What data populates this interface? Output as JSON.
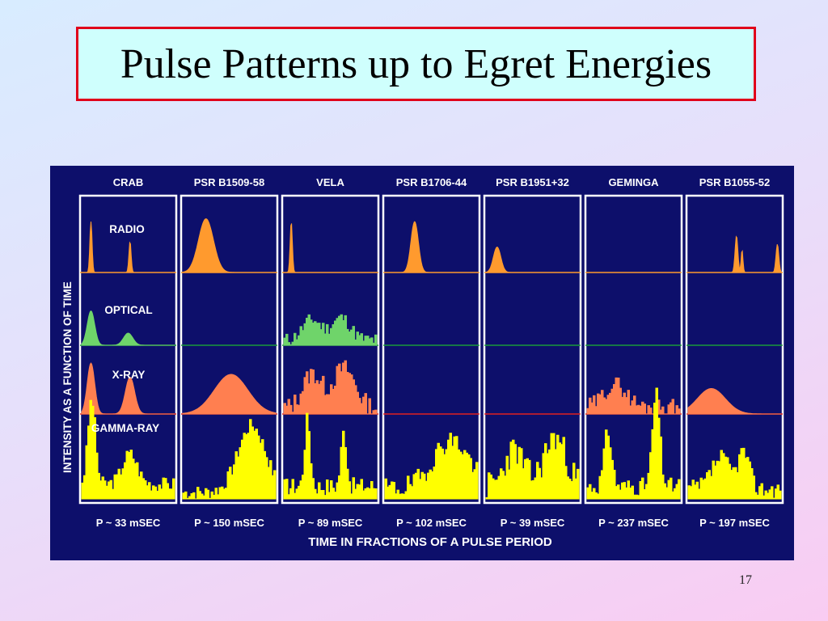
{
  "slide": {
    "title": "Pulse Patterns up to Egret Energies",
    "page_number": "17"
  },
  "figure": {
    "colors": {
      "background": "#0d0f6b",
      "panel_border": "#ffffff",
      "label_text": "#ffffff",
      "radio": "#ff9a2e",
      "optical": "#6fd46a",
      "optical_baseline": "#1a9a3a",
      "xray": "#ff7f50",
      "xray_outline": "#e02020",
      "gamma": "#ffff00"
    },
    "y_axis_label": "INTENSITY AS A FUNCTION OF TIME",
    "x_axis_label": "TIME IN FRACTIONS OF A PULSE PERIOD",
    "band_labels": {
      "radio": "RADIO",
      "optical": "OPTICAL",
      "xray": "X-RAY",
      "gamma": "GAMMA-RAY"
    },
    "pulsars": [
      {
        "name": "CRAB",
        "period": "P ~ 33 mSEC"
      },
      {
        "name": "PSR B1509-58",
        "period": "P ~ 150 mSEC"
      },
      {
        "name": "VELA",
        "period": "P ~ 89 mSEC"
      },
      {
        "name": "PSR B1706-44",
        "period": "P ~ 102 mSEC"
      },
      {
        "name": "PSR B1951+32",
        "period": "P ~ 39 mSEC"
      },
      {
        "name": "GEMINGA",
        "period": "P ~  237 mSEC"
      },
      {
        "name": "PSR B1055-52",
        "period": "P ~ 197 mSEC"
      }
    ]
  }
}
